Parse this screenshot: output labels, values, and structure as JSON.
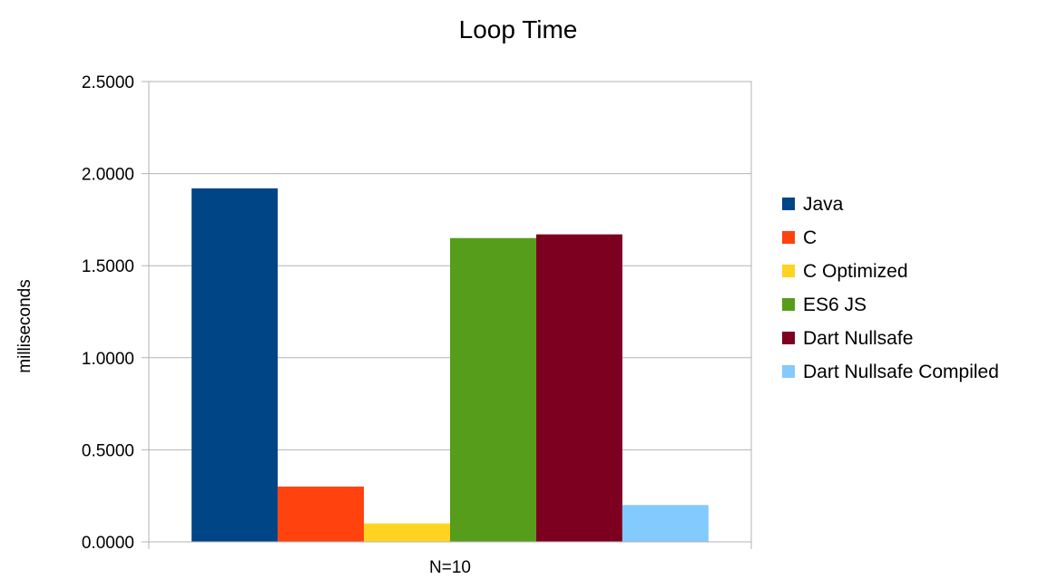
{
  "chart_data": {
    "type": "bar",
    "title": "Loop Time",
    "xlabel": "",
    "ylabel": "milliseconds",
    "categories": [
      "N=10"
    ],
    "ylim": [
      0,
      2.5
    ],
    "yticks": [
      "0.0000",
      "0.5000",
      "1.0000",
      "1.5000",
      "2.0000",
      "2.5000"
    ],
    "ytick_values": [
      0,
      0.5,
      1.0,
      1.5,
      2.0,
      2.5
    ],
    "grid": true,
    "legend_position": "right",
    "series": [
      {
        "name": "Java",
        "values": [
          1.92
        ],
        "color": "#004586"
      },
      {
        "name": "C",
        "values": [
          0.3
        ],
        "color": "#ff420e"
      },
      {
        "name": "C Optimized",
        "values": [
          0.1
        ],
        "color": "#ffd320"
      },
      {
        "name": "ES6 JS",
        "values": [
          1.65
        ],
        "color": "#579d1c"
      },
      {
        "name": "Dart Nullsafe",
        "values": [
          1.67
        ],
        "color": "#7e0021"
      },
      {
        "name": "Dart Nullsafe Compiled",
        "values": [
          0.2
        ],
        "color": "#83caff"
      }
    ]
  }
}
